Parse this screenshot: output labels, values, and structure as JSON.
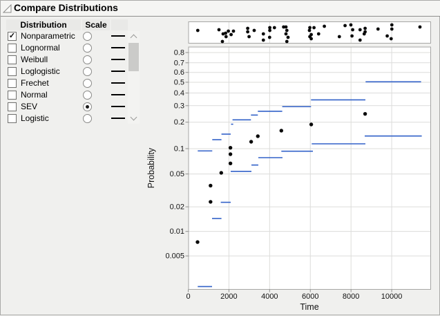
{
  "window": {
    "title": "Compare Distributions"
  },
  "icons": {
    "checkbox_check": "✓"
  },
  "table": {
    "headers": {
      "distribution": "Distribution",
      "scale": "Scale"
    },
    "rows": [
      {
        "label": "Nonparametric",
        "checked": true,
        "scale_selected": false
      },
      {
        "label": "Lognormal",
        "checked": false,
        "scale_selected": false
      },
      {
        "label": "Weibull",
        "checked": false,
        "scale_selected": false
      },
      {
        "label": "Loglogistic",
        "checked": false,
        "scale_selected": false
      },
      {
        "label": "Frechet",
        "checked": false,
        "scale_selected": false
      },
      {
        "label": "Normal",
        "checked": false,
        "scale_selected": false
      },
      {
        "label": "SEV",
        "checked": false,
        "scale_selected": true
      },
      {
        "label": "Logistic",
        "checked": false,
        "scale_selected": false
      }
    ]
  },
  "chart_data": {
    "type": "scatter",
    "xlabel": "Time",
    "ylabel": "Probability",
    "y_scale": "SEV probability",
    "xlim": [
      0,
      11900
    ],
    "x_ticks": [
      0,
      2000,
      4000,
      6000,
      8000,
      10000
    ],
    "y_ticks": [
      0.8,
      0.7,
      0.6,
      0.5,
      0.4,
      0.3,
      0.2,
      0.1,
      0.05,
      0.02,
      0.01,
      0.005
    ],
    "y_tick_labels": [
      "0.8",
      "0.7",
      "0.6",
      "0.5",
      "0.4",
      "0.3",
      "0.2",
      "0.1",
      "0.05",
      "0.02",
      "0.01",
      "0.005"
    ],
    "line_color": "#3060c8",
    "point_color": "#0a0a0a",
    "nonparametric": {
      "upper_segments": [
        [
          468,
          1181,
          0.094
        ],
        [
          1181,
          1633,
          0.127
        ],
        [
          1633,
          2088,
          0.147
        ],
        [
          2105,
          2210,
          0.19
        ],
        [
          2176,
          3082,
          0.212
        ],
        [
          3082,
          3421,
          0.239
        ],
        [
          3421,
          4620,
          0.262
        ],
        [
          4620,
          6035,
          0.293
        ],
        [
          6035,
          8707,
          0.343
        ],
        [
          8717,
          11443,
          0.504
        ]
      ],
      "lower_segments": [
        [
          468,
          1171,
          0.0021
        ],
        [
          1171,
          1633,
          0.0144
        ],
        [
          1599,
          2088,
          0.0227
        ],
        [
          2088,
          3106,
          0.0538
        ],
        [
          3106,
          3445,
          0.064
        ],
        [
          3445,
          4633,
          0.0783
        ],
        [
          4576,
          6127,
          0.0933
        ],
        [
          6069,
          8707,
          0.1137
        ],
        [
          8673,
          11477,
          0.14
        ]
      ],
      "midpoints": [
        [
          458,
          0.0074
        ],
        [
          1097,
          0.023
        ],
        [
          1097,
          0.0362
        ],
        [
          1623,
          0.0516
        ],
        [
          2074,
          0.0669
        ],
        [
          2074,
          0.086
        ],
        [
          2074,
          0.1024
        ],
        [
          3093,
          0.1202
        ],
        [
          3421,
          0.1392
        ],
        [
          4576,
          0.1609
        ],
        [
          6045,
          0.1887
        ],
        [
          8693,
          0.2461
        ]
      ]
    },
    "event_dots": [
      [
        469,
        43
      ],
      [
        1511,
        42
      ],
      [
        1680,
        59
      ],
      [
        1714,
        48
      ],
      [
        1836,
        47
      ],
      [
        1860,
        52
      ],
      [
        1972,
        44
      ],
      [
        2108,
        49
      ],
      [
        2223,
        44
      ],
      [
        2923,
        40
      ],
      [
        2923,
        45
      ],
      [
        2990,
        52
      ],
      [
        3242,
        43
      ],
      [
        3693,
        48
      ],
      [
        3693,
        57
      ],
      [
        4009,
        39
      ],
      [
        4009,
        43
      ],
      [
        3999,
        53
      ],
      [
        4236,
        39
      ],
      [
        4688,
        38
      ],
      [
        4803,
        38
      ],
      [
        4847,
        43
      ],
      [
        4803,
        48
      ],
      [
        4905,
        53
      ],
      [
        4847,
        59
      ],
      [
        5957,
        43
      ],
      [
        5977,
        52
      ],
      [
        5977,
        39
      ],
      [
        6181,
        39
      ],
      [
        6045,
        49
      ],
      [
        6045,
        55
      ],
      [
        6408,
        48
      ],
      [
        6690,
        37
      ],
      [
        7427,
        52
      ],
      [
        7708,
        36
      ],
      [
        7993,
        35
      ],
      [
        8082,
        42
      ],
      [
        8048,
        51
      ],
      [
        8445,
        42
      ],
      [
        8445,
        57
      ],
      [
        8693,
        40
      ],
      [
        8693,
        45
      ],
      [
        8649,
        48
      ],
      [
        9328,
        41
      ],
      [
        9779,
        51
      ],
      [
        10007,
        35
      ],
      [
        10007,
        41
      ],
      [
        9973,
        55
      ],
      [
        11388,
        38
      ]
    ]
  }
}
